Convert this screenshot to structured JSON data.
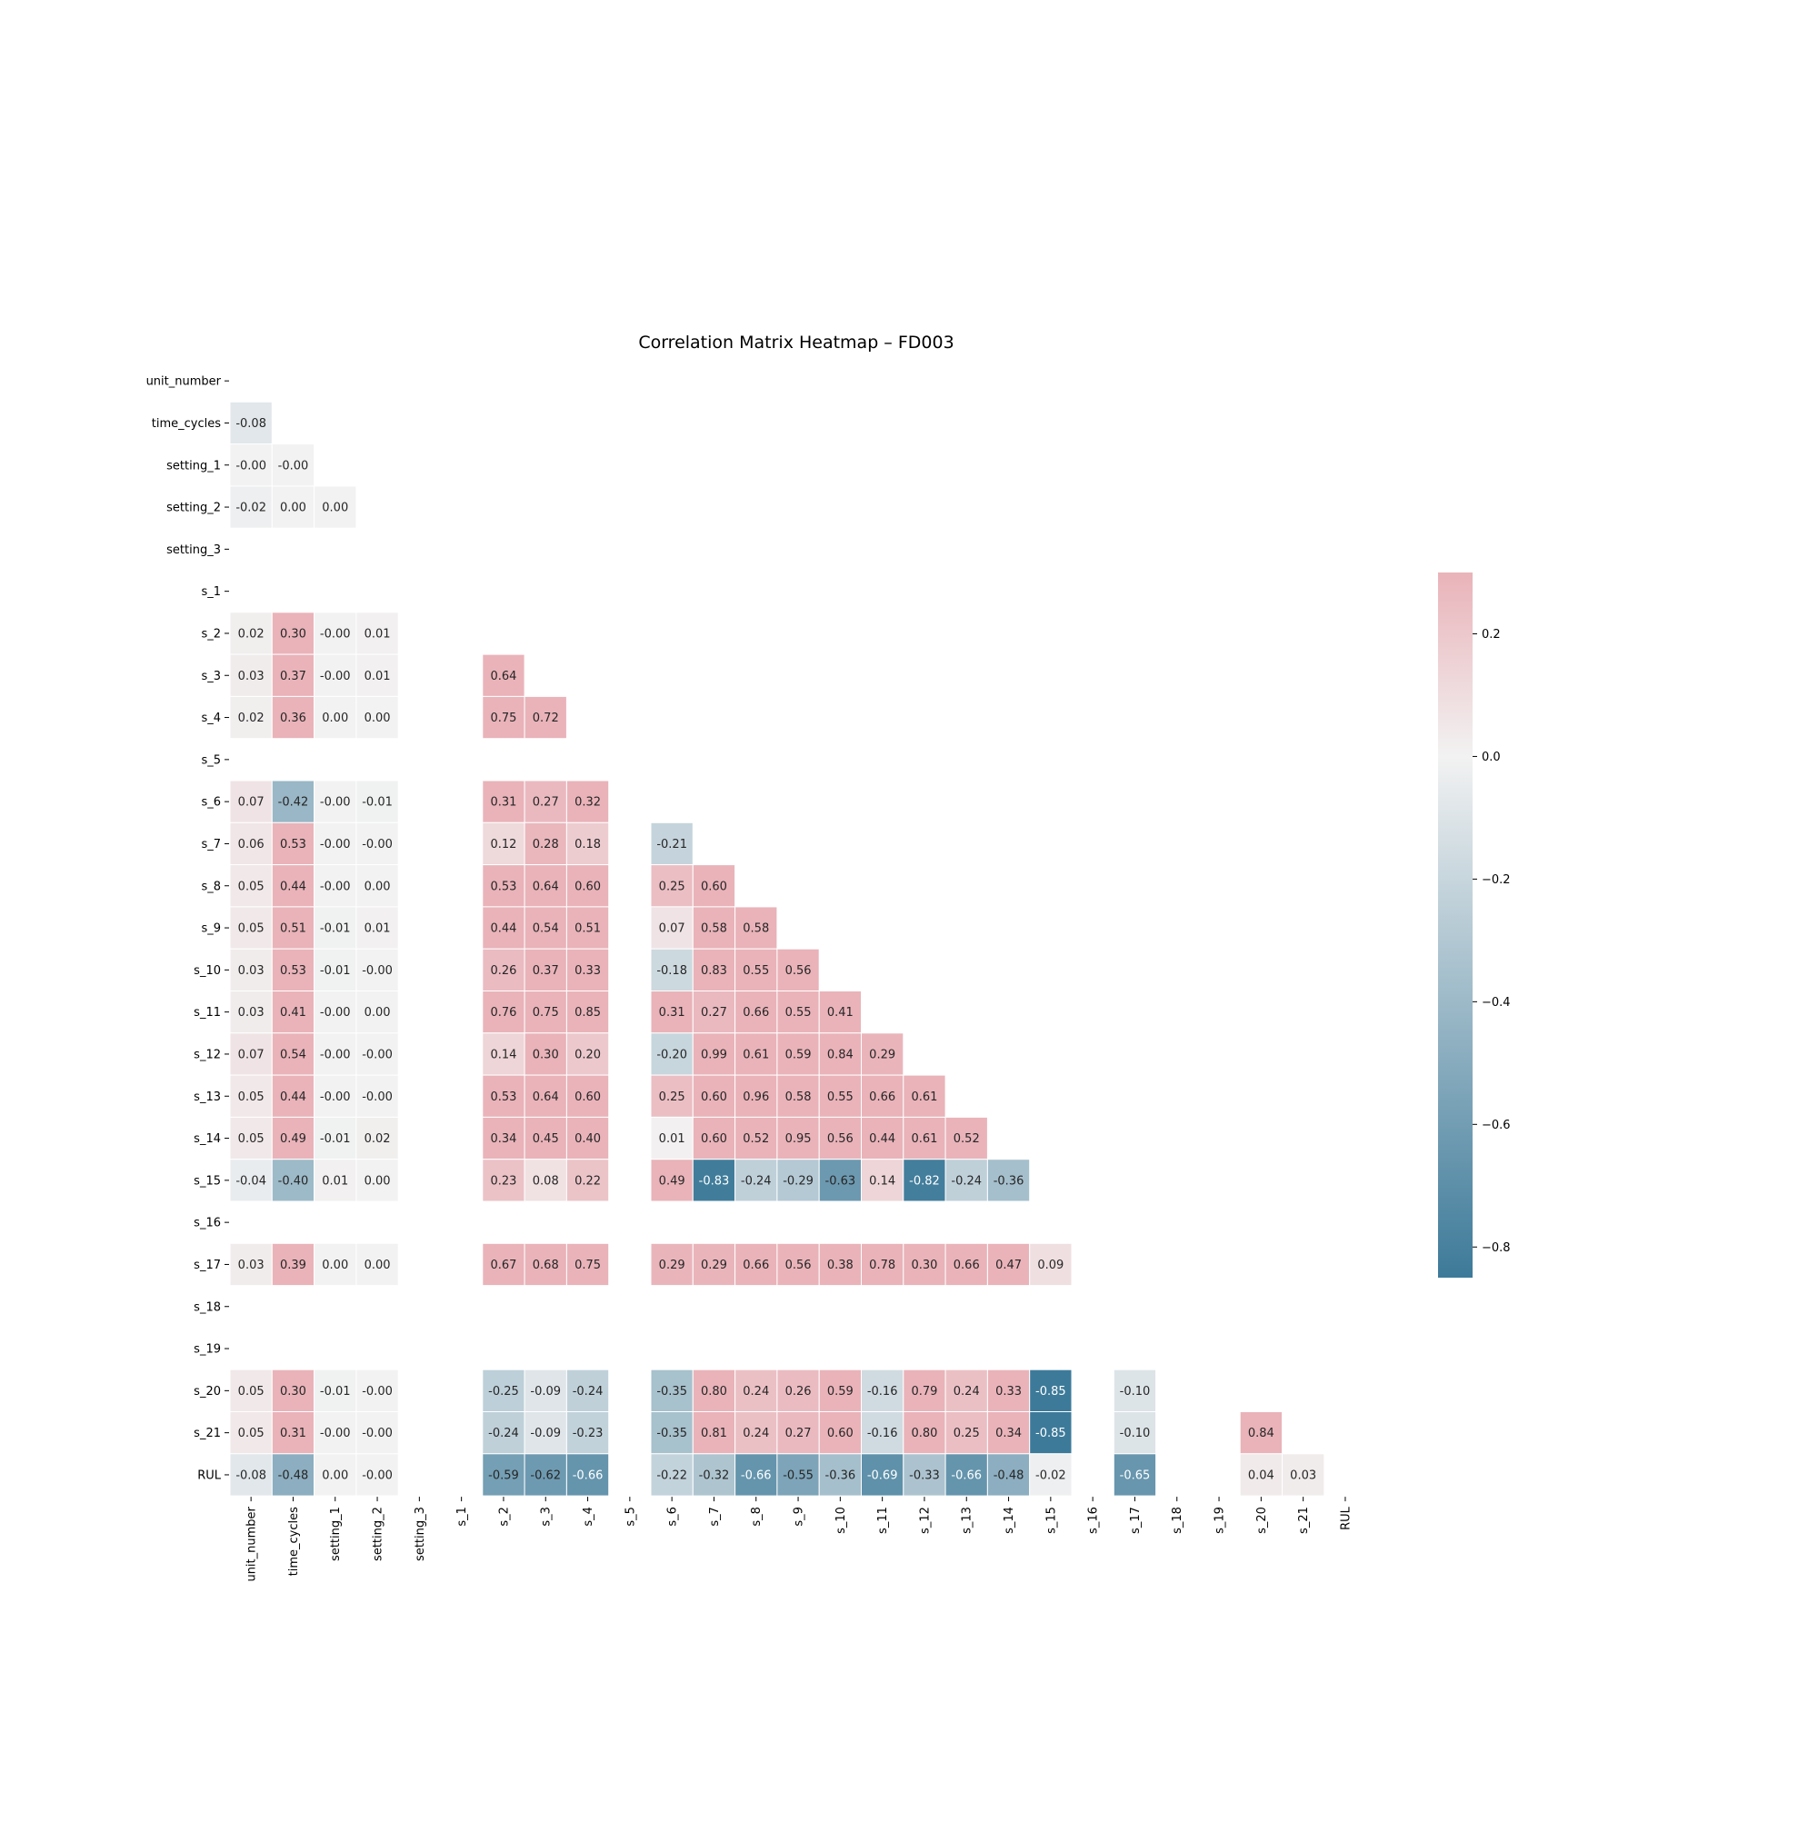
{
  "chart_data": {
    "type": "heatmap",
    "title": "Correlation Matrix Heatmap – FD003",
    "variables": [
      "unit_number",
      "time_cycles",
      "setting_1",
      "setting_2",
      "setting_3",
      "s_1",
      "s_2",
      "s_3",
      "s_4",
      "s_5",
      "s_6",
      "s_7",
      "s_8",
      "s_9",
      "s_10",
      "s_11",
      "s_12",
      "s_13",
      "s_14",
      "s_15",
      "s_16",
      "s_17",
      "s_18",
      "s_19",
      "s_20",
      "s_21",
      "RUL"
    ],
    "mask": "upper-triangle-including-diagonal",
    "matrix_lower": [
      [],
      [
        -0.08
      ],
      [
        -0.0,
        -0.0
      ],
      [
        -0.02,
        0.0,
        0.0
      ],
      [
        null,
        null,
        null,
        null
      ],
      [
        null,
        null,
        null,
        null,
        null
      ],
      [
        0.02,
        0.3,
        -0.0,
        0.01,
        null,
        null
      ],
      [
        0.03,
        0.37,
        -0.0,
        0.01,
        null,
        null,
        0.64
      ],
      [
        0.02,
        0.36,
        0.0,
        0.0,
        null,
        null,
        0.75,
        0.72
      ],
      [
        null,
        null,
        null,
        null,
        null,
        null,
        null,
        null,
        null
      ],
      [
        0.07,
        -0.42,
        -0.0,
        -0.01,
        null,
        null,
        0.31,
        0.27,
        0.32,
        null
      ],
      [
        0.06,
        0.53,
        -0.0,
        -0.0,
        null,
        null,
        0.12,
        0.28,
        0.18,
        null,
        -0.21
      ],
      [
        0.05,
        0.44,
        -0.0,
        0.0,
        null,
        null,
        0.53,
        0.64,
        0.6,
        null,
        0.25,
        0.6
      ],
      [
        0.05,
        0.51,
        -0.01,
        0.01,
        null,
        null,
        0.44,
        0.54,
        0.51,
        null,
        0.07,
        0.58,
        0.58
      ],
      [
        0.03,
        0.53,
        -0.01,
        -0.0,
        null,
        null,
        0.26,
        0.37,
        0.33,
        null,
        -0.18,
        0.83,
        0.55,
        0.56
      ],
      [
        0.03,
        0.41,
        -0.0,
        0.0,
        null,
        null,
        0.76,
        0.75,
        0.85,
        null,
        0.31,
        0.27,
        0.66,
        0.55,
        0.41
      ],
      [
        0.07,
        0.54,
        -0.0,
        -0.0,
        null,
        null,
        0.14,
        0.3,
        0.2,
        null,
        -0.2,
        0.99,
        0.61,
        0.59,
        0.84,
        0.29
      ],
      [
        0.05,
        0.44,
        -0.0,
        -0.0,
        null,
        null,
        0.53,
        0.64,
        0.6,
        null,
        0.25,
        0.6,
        0.96,
        0.58,
        0.55,
        0.66,
        0.61
      ],
      [
        0.05,
        0.49,
        -0.01,
        0.02,
        null,
        null,
        0.34,
        0.45,
        0.4,
        null,
        0.01,
        0.6,
        0.52,
        0.95,
        0.56,
        0.44,
        0.61,
        0.52
      ],
      [
        -0.04,
        -0.4,
        0.01,
        0.0,
        null,
        null,
        0.23,
        0.08,
        0.22,
        null,
        0.49,
        -0.83,
        -0.24,
        -0.29,
        -0.63,
        0.14,
        -0.82,
        -0.24,
        -0.36
      ],
      [
        null,
        null,
        null,
        null,
        null,
        null,
        null,
        null,
        null,
        null,
        null,
        null,
        null,
        null,
        null,
        null,
        null,
        null,
        null,
        null
      ],
      [
        0.03,
        0.39,
        0.0,
        0.0,
        null,
        null,
        0.67,
        0.68,
        0.75,
        null,
        0.29,
        0.29,
        0.66,
        0.56,
        0.38,
        0.78,
        0.3,
        0.66,
        0.47,
        0.09,
        null
      ],
      [
        null,
        null,
        null,
        null,
        null,
        null,
        null,
        null,
        null,
        null,
        null,
        null,
        null,
        null,
        null,
        null,
        null,
        null,
        null,
        null,
        null,
        null
      ],
      [
        null,
        null,
        null,
        null,
        null,
        null,
        null,
        null,
        null,
        null,
        null,
        null,
        null,
        null,
        null,
        null,
        null,
        null,
        null,
        null,
        null,
        null,
        null
      ],
      [
        0.05,
        0.3,
        -0.01,
        -0.0,
        null,
        null,
        -0.25,
        -0.09,
        -0.24,
        null,
        -0.35,
        0.8,
        0.24,
        0.26,
        0.59,
        -0.16,
        0.79,
        0.24,
        0.33,
        -0.85,
        null,
        -0.1,
        null,
        null
      ],
      [
        0.05,
        0.31,
        -0.0,
        -0.0,
        null,
        null,
        -0.24,
        -0.09,
        -0.23,
        null,
        -0.35,
        0.81,
        0.24,
        0.27,
        0.6,
        -0.16,
        0.8,
        0.25,
        0.34,
        -0.85,
        null,
        -0.1,
        null,
        null,
        0.84
      ],
      [
        -0.08,
        -0.48,
        0.0,
        -0.0,
        null,
        null,
        -0.59,
        -0.62,
        -0.66,
        null,
        -0.22,
        -0.32,
        -0.66,
        -0.55,
        -0.36,
        -0.69,
        -0.33,
        -0.66,
        -0.48,
        -0.02,
        null,
        -0.65,
        null,
        null,
        0.04,
        0.03
      ]
    ],
    "colorbar": {
      "vmin": -0.85,
      "vmax": 0.3,
      "ticks": [
        0.2,
        0.0,
        -0.2,
        -0.4,
        -0.6,
        -0.8
      ],
      "tick_labels": [
        "0.2",
        "0.0",
        "−0.2",
        "−0.4",
        "−0.6",
        "−0.8"
      ],
      "colors": {
        "negative": "#3d7a99",
        "center": "#f2f2f2",
        "positive": "#e9b3b9"
      }
    },
    "legend_placement": "right",
    "grid": false
  }
}
